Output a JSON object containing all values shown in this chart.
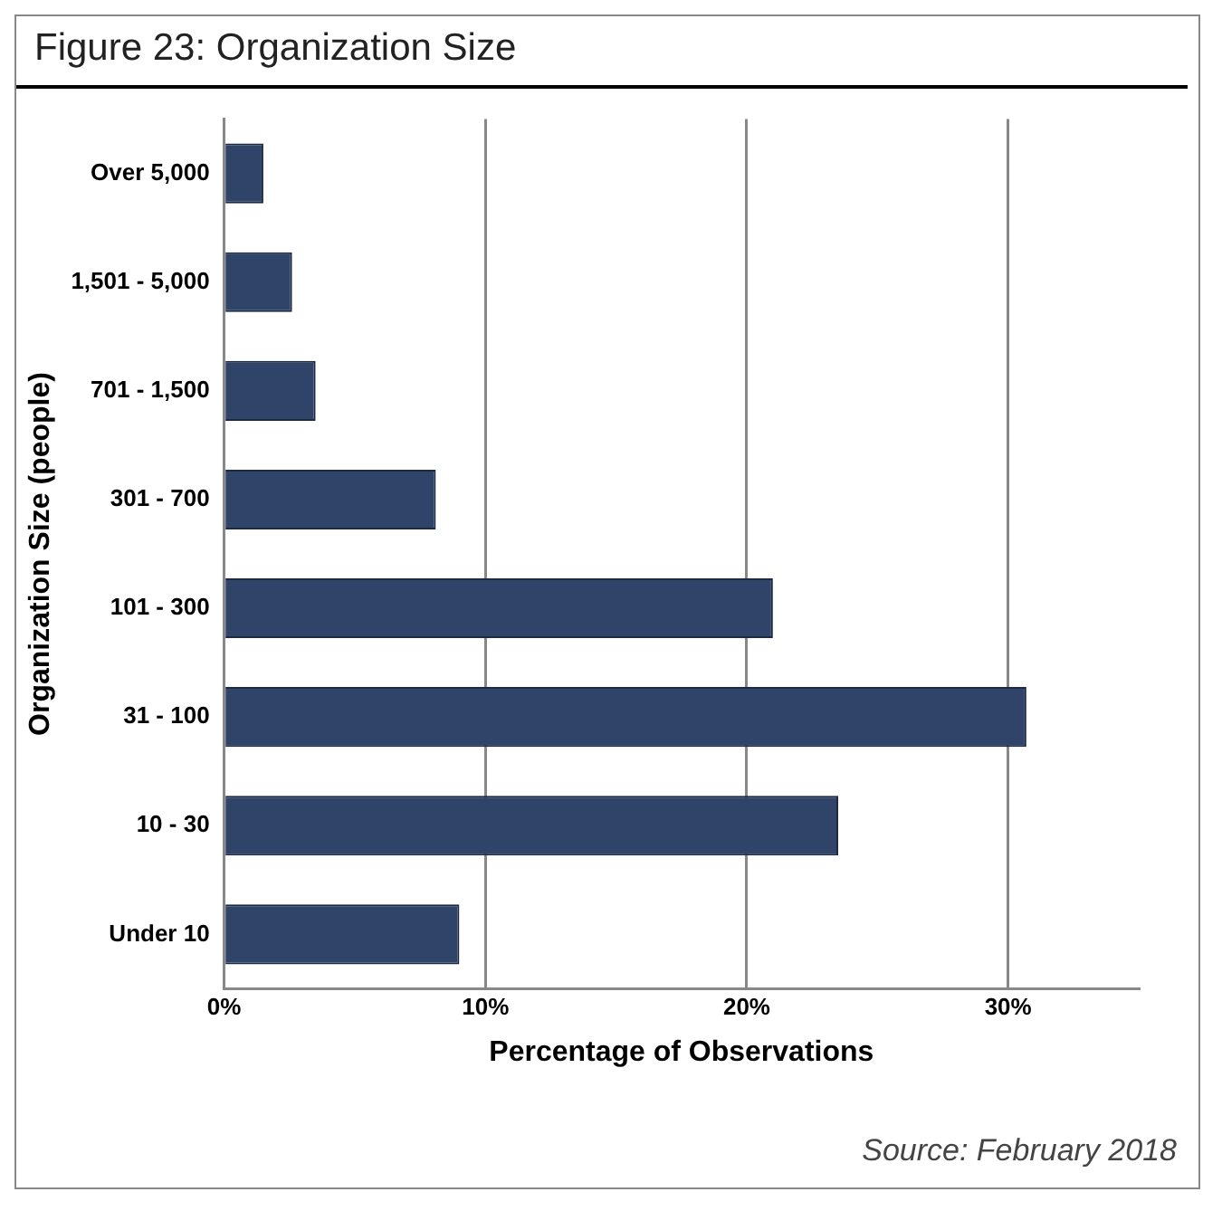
{
  "chart_data": {
    "type": "bar",
    "orientation": "horizontal",
    "title": "Figure 23:  Organization Size",
    "xlabel": "Percentage of Observations",
    "ylabel": "Organization Size (people)",
    "categories": [
      "Over 5,000",
      "1,501 - 5,000",
      "701 - 1,500",
      "301 - 700",
      "101 - 300",
      "31 - 100",
      "10 - 30",
      "Under 10"
    ],
    "values": [
      1.5,
      2.6,
      3.5,
      8.1,
      21.0,
      30.7,
      23.5,
      9.0
    ],
    "color": "#2f4468",
    "xlim": [
      0,
      35
    ],
    "xticks": [
      {
        "value": 0,
        "label": "0%"
      },
      {
        "value": 10,
        "label": "10%"
      },
      {
        "value": 20,
        "label": "20%"
      },
      {
        "value": 30,
        "label": "30%"
      }
    ],
    "grid": "x",
    "annotations": [
      "Source: February 2018"
    ]
  }
}
